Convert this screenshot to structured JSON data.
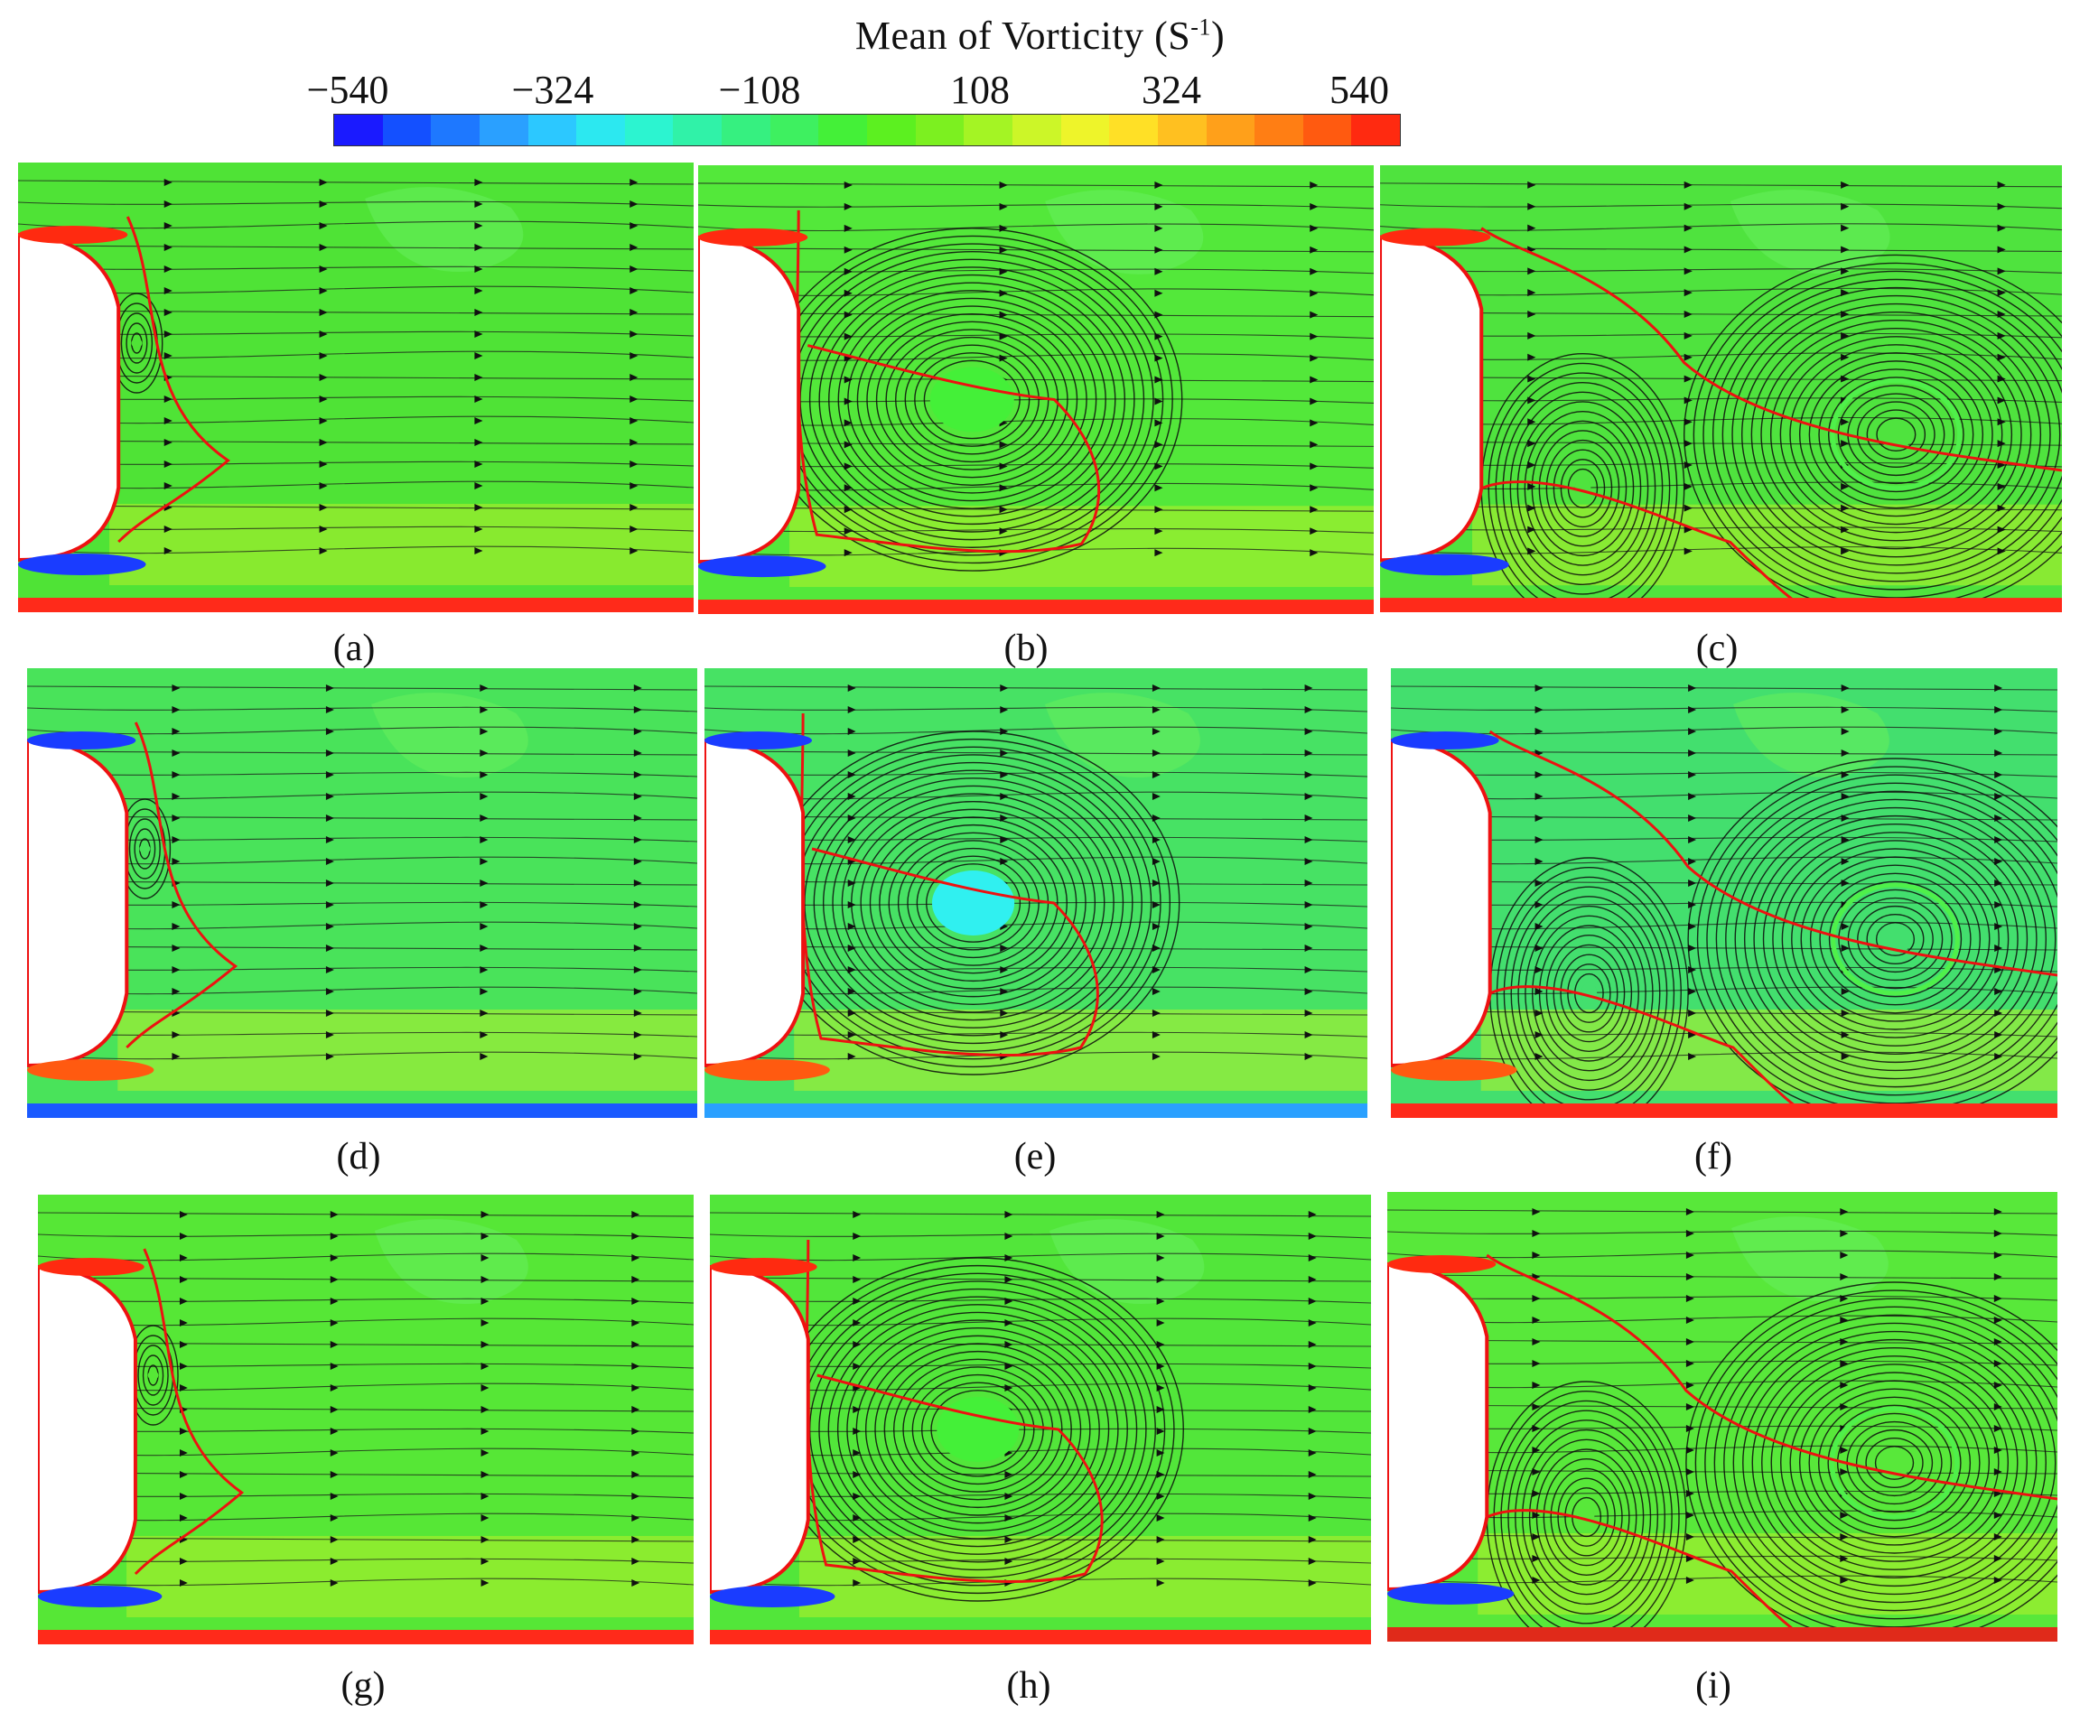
{
  "colorbar": {
    "title_main": "Mean of Vorticity (S",
    "title_sup": "-1",
    "title_close": ")",
    "ticks": [
      "−540",
      "−324",
      "−108",
      "108",
      "324",
      "540"
    ],
    "colors": [
      "#1a1aff",
      "#1450ff",
      "#1e78ff",
      "#2aa0ff",
      "#2cc8ff",
      "#2ce8f0",
      "#2cf4d0",
      "#30f2a8",
      "#36f080",
      "#3ef060",
      "#44f038",
      "#5cf020",
      "#7cf020",
      "#a4f424",
      "#ccf628",
      "#eef42a",
      "#ffe026",
      "#ffc020",
      "#ffa01a",
      "#ff7e14",
      "#ff5a10",
      "#ff2a10"
    ]
  },
  "panels": [
    {
      "label": "(a)",
      "bg": "#4fe336",
      "bottom": "#ff2a1a",
      "regime": "small"
    },
    {
      "label": "(b)",
      "bg": "#53e83a",
      "bottom": "#ff2a1a",
      "regime": "single"
    },
    {
      "label": "(c)",
      "bg": "#4fe33e",
      "bottom": "#ff2a1a",
      "regime": "double"
    },
    {
      "label": "(d)",
      "bg": "#49e35a",
      "bottom": "#1a5aff",
      "regime": "small"
    },
    {
      "label": "(e)",
      "bg": "#47e264",
      "bottom": "#2aa0ff",
      "regime": "single"
    },
    {
      "label": "(f)",
      "bg": "#43df6e",
      "bottom": "#ff2a1a",
      "regime": "double"
    },
    {
      "label": "(g)",
      "bg": "#56e736",
      "bottom": "#ff2a1a",
      "regime": "small"
    },
    {
      "label": "(h)",
      "bg": "#52e63a",
      "bottom": "#ff2a1a",
      "regime": "single"
    },
    {
      "label": "(i)",
      "bg": "#58e83a",
      "bottom": "#e02a1a",
      "regime": "double"
    }
  ]
}
